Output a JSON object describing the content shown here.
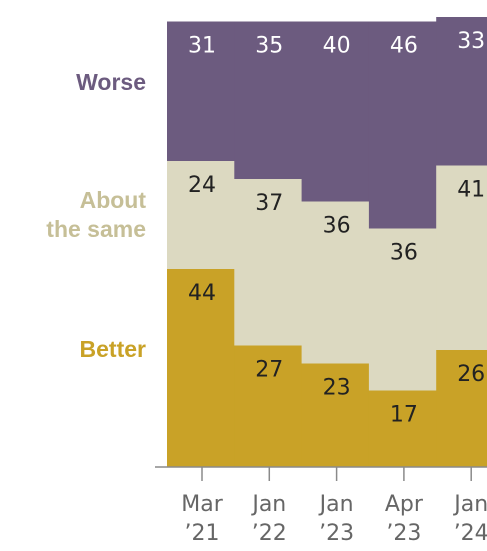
{
  "chart_data": {
    "type": "bar",
    "stacked": true,
    "orientation": "vertical",
    "categories": [
      [
        "Mar",
        "’21"
      ],
      [
        "Jan",
        "’22"
      ],
      [
        "Jan",
        "’23"
      ],
      [
        "Apr",
        "’23"
      ],
      [
        "Jan",
        "’24"
      ]
    ],
    "series": [
      {
        "name": "Better",
        "legend_lines": [
          "Better"
        ],
        "color": "#c9a227",
        "values": [
          44,
          27,
          23,
          17,
          26
        ]
      },
      {
        "name": "About the same",
        "legend_lines": [
          "About",
          "the same"
        ],
        "color": "#dcd9c1",
        "values": [
          24,
          37,
          36,
          36,
          41
        ]
      },
      {
        "name": "Worse",
        "legend_lines": [
          "Worse"
        ],
        "color": "#6c5b7f",
        "values": [
          31,
          35,
          40,
          46,
          33
        ]
      }
    ],
    "legend_colors": {
      "Better": "#c9a227",
      "About the same": "#c6bf97",
      "Worse": "#6c5b7f"
    },
    "value_label_color": "#222222",
    "legend_position": "left",
    "ylim": [
      0,
      100
    ],
    "grid": false
  }
}
